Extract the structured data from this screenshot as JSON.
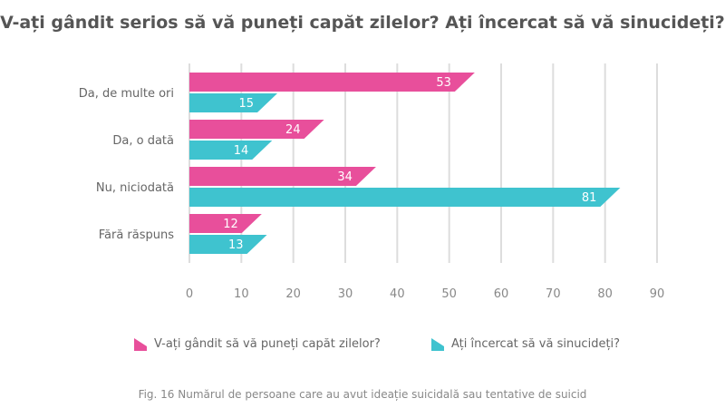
{
  "chart_data": {
    "type": "bar",
    "orientation": "horizontal",
    "title": "V-ați gândit serios să vă puneți capăt zilelor? Ați încercat să vă sinucideți?",
    "categories": [
      "Da, de multe ori",
      "Da, o dată",
      "Nu, niciodată",
      "Fără răspuns"
    ],
    "series": [
      {
        "name": "V-ați gândit să vă puneți capăt zilelor?",
        "values": [
          53,
          24,
          34,
          12
        ],
        "color": "#e84f9b"
      },
      {
        "name": "Ați încercat să vă sinucideți?",
        "values": [
          15,
          14,
          81,
          13
        ],
        "color": "#3fc3cf"
      }
    ],
    "xlim": [
      0,
      90
    ],
    "xticks": [
      0,
      10,
      20,
      30,
      40,
      50,
      60,
      70,
      80,
      90
    ],
    "grid": true,
    "legend": "bottom",
    "caption": "Fig. 16 Numărul de persoane care au avut ideație suicidală sau tentative de suicid"
  }
}
